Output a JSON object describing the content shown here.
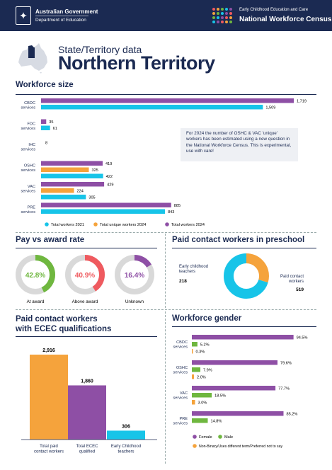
{
  "header": {
    "gov_line1": "Australian Government",
    "gov_line2": "Department of Education",
    "census_line1": "Early Childhood Education and Care",
    "census_line2": "National Workforce Census"
  },
  "page": {
    "subtitle": "State/Territory data",
    "title": "Northern Territory"
  },
  "colors": {
    "navy": "#1b2a52",
    "purple": "#8e4fa5",
    "cyan": "#17c4e8",
    "orange": "#f5a33c",
    "green": "#6fb73f",
    "red": "#ef5a5f",
    "gray": "#d9d9d9"
  },
  "sections": {
    "workforce_size": "Workforce size",
    "pay": "Pay vs award rate",
    "preschool": "Paid contact workers in preschool",
    "qualifications": "Paid contact workers\nwith ECEC qualifications",
    "gender": "Workforce gender"
  },
  "note": "For 2024 the number of OSHC & VAC 'unique' workers has been estimated using a new question in the National Workforce Census. This is experimental, use with care!",
  "chart_data": [
    {
      "type": "bar",
      "orientation": "horizontal",
      "title": "Workforce size",
      "categories": [
        "CBDC services",
        "FDC services",
        "IHC services",
        "OSHC services",
        "VAC services",
        "PRE services"
      ],
      "series": [
        {
          "name": "Total workers 2021",
          "color": "#17c4e8",
          "values": [
            1509,
            61,
            null,
            422,
            305,
            843
          ]
        },
        {
          "name": "Total unique workers 2024",
          "color": "#f5a33c",
          "values": [
            null,
            null,
            null,
            325,
            224,
            null
          ]
        },
        {
          "name": "Total workers 2024",
          "color": "#8e4fa5",
          "values": [
            1719,
            35,
            8,
            419,
            429,
            885
          ]
        }
      ],
      "labels": [
        [
          "1,509",
          "61",
          "",
          "422",
          "305",
          "843"
        ],
        [
          "",
          "",
          "",
          "325",
          "224",
          ""
        ],
        [
          "1,719",
          "35",
          "8",
          "419",
          "429",
          "885"
        ]
      ],
      "xlim": [
        0,
        1719
      ],
      "legend": "bottom"
    },
    {
      "type": "pie",
      "title": "Pay vs award rate",
      "donuts": [
        {
          "label": "At award",
          "value": 42.8,
          "text": "42.8%",
          "color": "#6fb73f"
        },
        {
          "label": "Above award",
          "value": 40.9,
          "text": "40.9%",
          "color": "#ef5a5f"
        },
        {
          "label": "Unknown",
          "value": 16.4,
          "text": "16.4%",
          "color": "#8e4fa5"
        }
      ]
    },
    {
      "type": "pie",
      "title": "Paid contact workers in preschool",
      "slices": [
        {
          "label": "Early childhood teachers",
          "value": 218,
          "text": "218",
          "color": "#f5a33c"
        },
        {
          "label": "Paid contact workers",
          "value": 519,
          "text": "519",
          "color": "#17c4e8"
        }
      ]
    },
    {
      "type": "bar",
      "title": "Paid contact workers with ECEC qualifications",
      "categories": [
        "Total paid contact workers",
        "Total ECEC qualified",
        "Early Childhood teachers"
      ],
      "values": [
        2916,
        1860,
        306
      ],
      "labels": [
        "2,916",
        "1,860",
        "306"
      ],
      "colors": [
        "#f5a33c",
        "#8e4fa5",
        "#17c4e8"
      ],
      "ylim": [
        0,
        2916
      ]
    },
    {
      "type": "bar",
      "orientation": "horizontal",
      "title": "Workforce gender",
      "categories": [
        "CBDC services",
        "OSHC services",
        "VAC services",
        "PRE services"
      ],
      "series": [
        {
          "name": "Female",
          "color": "#8e4fa5",
          "values": [
            94.5,
            79.6,
            77.7,
            85.2
          ],
          "labels": [
            "94.5%",
            "79.6%",
            "77.7%",
            "85.2%"
          ]
        },
        {
          "name": "Male",
          "color": "#6fb73f",
          "values": [
            5.2,
            7.9,
            18.5,
            14.8
          ],
          "labels": [
            "5.2%",
            "7.9%",
            "18.5%",
            "14.8%"
          ]
        },
        {
          "name": "Non-Binary/Uses different term/Preferred not to say",
          "color": "#f5a33c",
          "values": [
            0.3,
            2.0,
            3.0,
            null
          ],
          "labels": [
            "0.3%",
            "2.0%",
            "3.0%",
            ""
          ]
        }
      ],
      "xlim": [
        0,
        100
      ],
      "legend": "bottom"
    }
  ]
}
